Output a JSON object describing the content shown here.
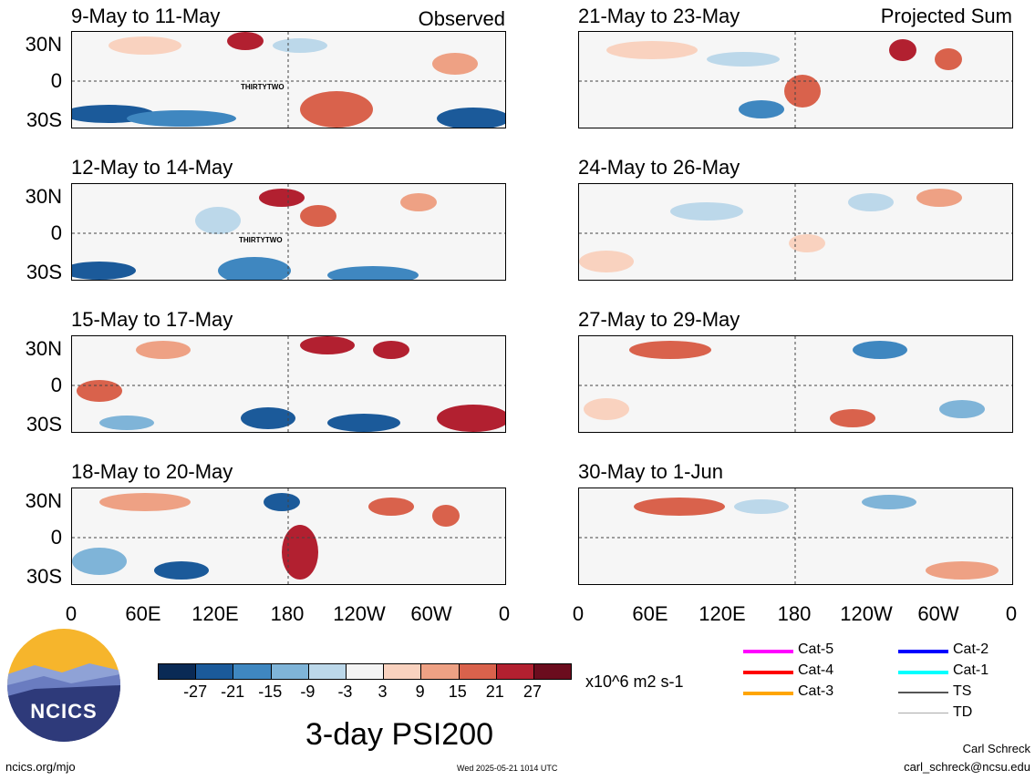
{
  "panels_left": [
    {
      "period": "9-May to 11-May",
      "tag": "Observed",
      "storm": "THIRTYTWO"
    },
    {
      "period": "12-May to 14-May",
      "tag": "",
      "storm": "THIRTYTWO"
    },
    {
      "period": "15-May to 17-May",
      "tag": "",
      "storm": ""
    },
    {
      "period": "18-May to 20-May",
      "tag": "",
      "storm": ""
    }
  ],
  "panels_right": [
    {
      "period": "21-May to 23-May",
      "tag": "Projected Sum"
    },
    {
      "period": "24-May to 26-May",
      "tag": ""
    },
    {
      "period": "27-May to 29-May",
      "tag": ""
    },
    {
      "period": "30-May to 1-Jun",
      "tag": ""
    }
  ],
  "lat_labels": [
    "30N",
    "0",
    "30S"
  ],
  "lon_labels": [
    "0",
    "60E",
    "120E",
    "180",
    "120W",
    "60W",
    "0"
  ],
  "colorbar": {
    "ticks": [
      "-27",
      "-21",
      "-15",
      "-9",
      "-3",
      "3",
      "9",
      "15",
      "21",
      "27"
    ],
    "colors": [
      "#0a2a55",
      "#1b5a9a",
      "#3f87c0",
      "#7fb4d8",
      "#bcd8ea",
      "#f4f4f4",
      "#f9d2bf",
      "#eea184",
      "#d9624c",
      "#b22030",
      "#6b0c1e"
    ],
    "units": "x10^6 m2 s-1"
  },
  "main_title": "3-day PSI200",
  "logo": {
    "text": "NCICS"
  },
  "legend": [
    {
      "label": "Cat-5",
      "color": "#ff00ff"
    },
    {
      "label": "Cat-4",
      "color": "#ff0000"
    },
    {
      "label": "Cat-3",
      "color": "#ffa500"
    },
    {
      "label": "Cat-2",
      "color": "#0000ff"
    },
    {
      "label": "Cat-1",
      "color": "#00ffff"
    },
    {
      "label": "TS",
      "color": "#555555"
    },
    {
      "label": "TD",
      "color": "#aaaaaa"
    }
  ],
  "footer": {
    "url": "ncics.org/mjo",
    "timestamp": "Wed 2025-05-21 1014 UTC",
    "author": "Carl Schreck",
    "email": "carl_schreck@ncsu.edu"
  }
}
